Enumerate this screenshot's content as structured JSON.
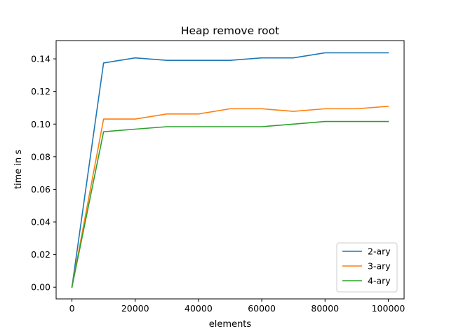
{
  "chart_data": {
    "type": "line",
    "title": "Heap remove root",
    "xlabel": "elements",
    "ylabel": "time in s",
    "xlim": [
      -5000,
      105000
    ],
    "ylim": [
      -0.0072,
      0.1512
    ],
    "xticks": [
      0,
      20000,
      40000,
      60000,
      80000,
      100000
    ],
    "xtick_labels": [
      "0",
      "20000",
      "40000",
      "60000",
      "80000",
      "100000"
    ],
    "yticks": [
      0.0,
      0.02,
      0.04,
      0.06,
      0.08,
      0.1,
      0.12,
      0.14
    ],
    "ytick_labels": [
      "0.00",
      "0.02",
      "0.04",
      "0.06",
      "0.08",
      "0.10",
      "0.12",
      "0.14"
    ],
    "grid": false,
    "legend_position": "lower-right",
    "x": [
      0,
      10000,
      20000,
      30000,
      40000,
      50000,
      60000,
      70000,
      80000,
      90000,
      100000
    ],
    "series": [
      {
        "name": "2-ary",
        "color": "#1f77b4",
        "values": [
          0.0,
          0.1375,
          0.1406,
          0.1391,
          0.1391,
          0.1391,
          0.1406,
          0.1406,
          0.1437,
          0.1437,
          0.1437
        ]
      },
      {
        "name": "3-ary",
        "color": "#ff7f0e",
        "values": [
          0.0,
          0.1031,
          0.1031,
          0.1062,
          0.1062,
          0.1094,
          0.1094,
          0.1078,
          0.1094,
          0.1094,
          0.1109
        ]
      },
      {
        "name": "4-ary",
        "color": "#2ca02c",
        "values": [
          0.0,
          0.0953,
          0.0969,
          0.0984,
          0.0984,
          0.0984,
          0.0984,
          0.1,
          0.1016,
          0.1016,
          0.1016
        ]
      }
    ]
  }
}
